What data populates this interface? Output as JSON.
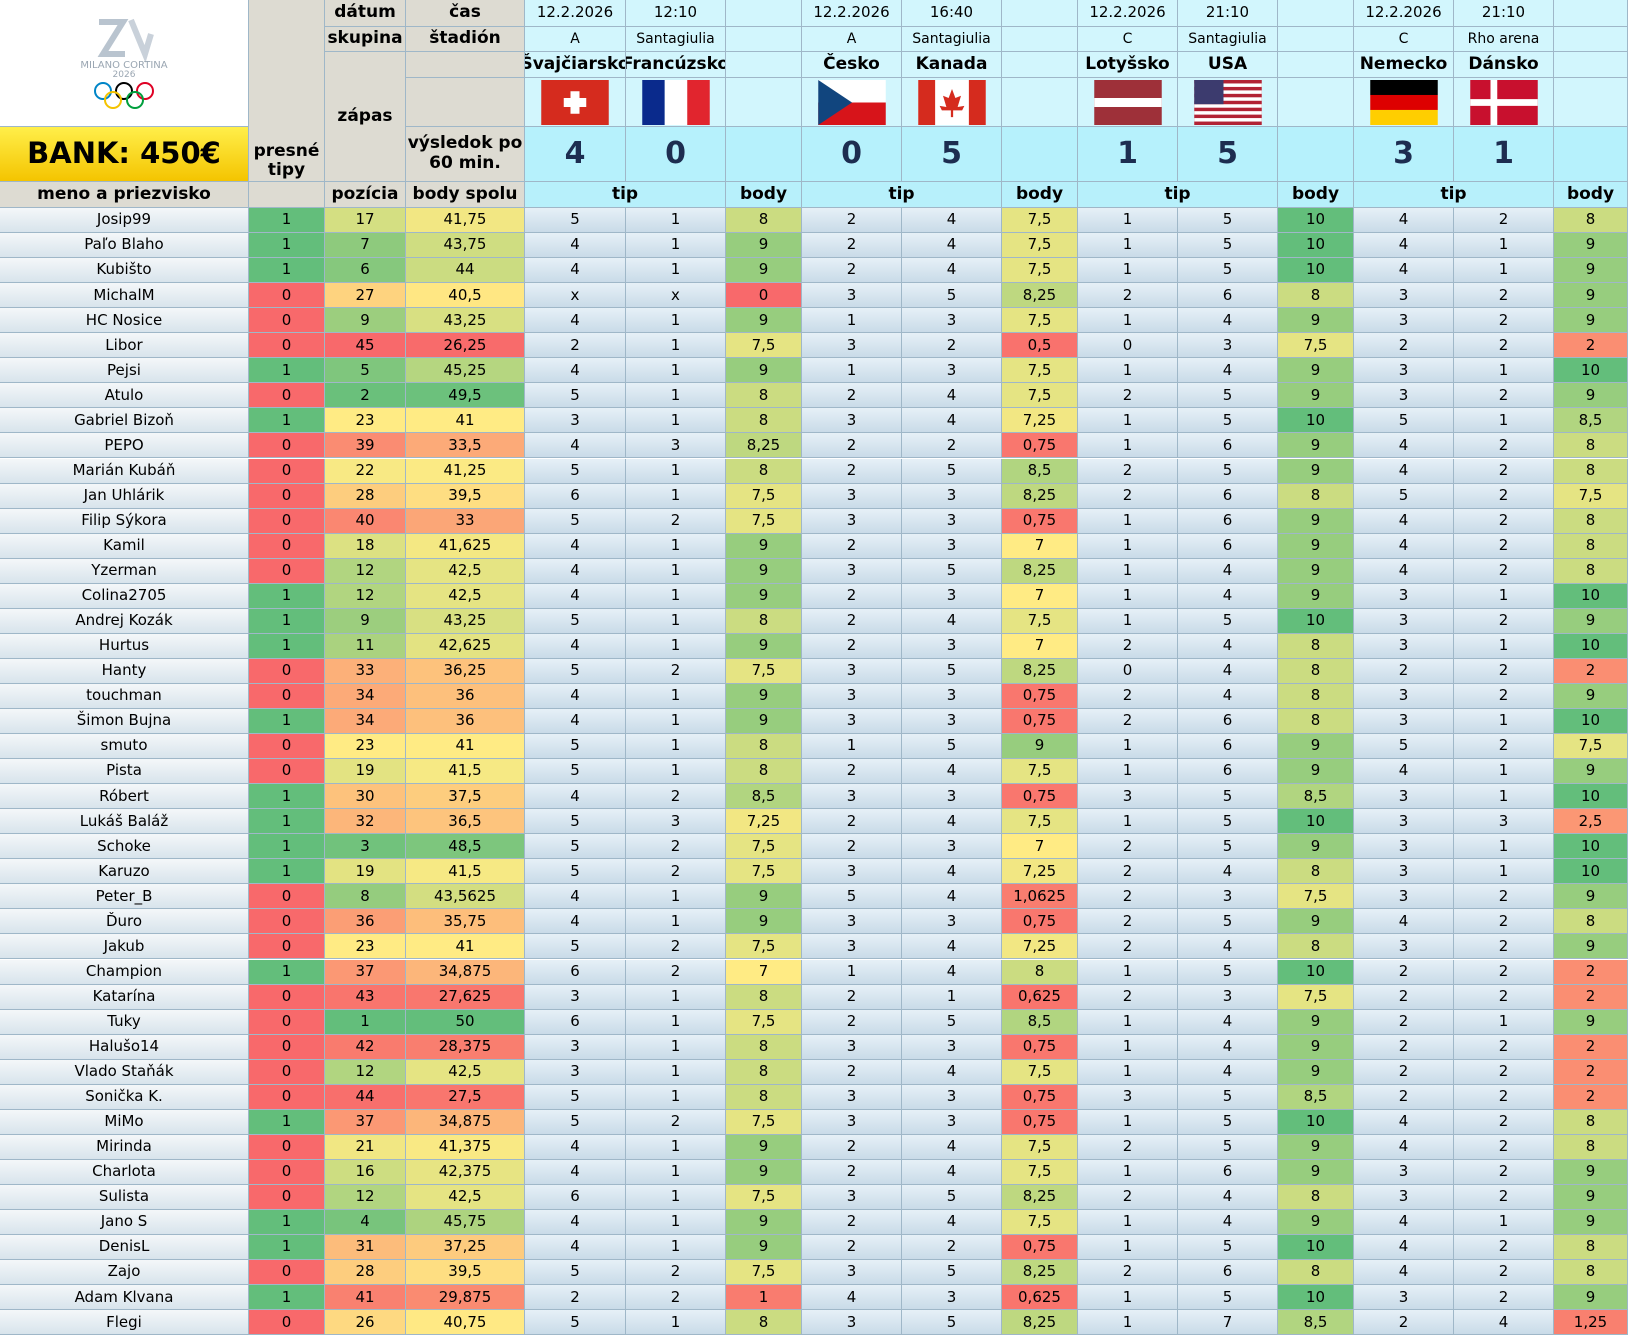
{
  "logo": {
    "line1": "MILANO CORTINA",
    "line2": "2026"
  },
  "bank_label": "BANK: 450€",
  "headers": {
    "datum": "dátum",
    "cas": "čas",
    "skupina": "skupina",
    "stadion": "štadión",
    "zapas": "zápas",
    "vysledok": "výsledok po 60 min.",
    "presne_tipy": "presné tipy",
    "meno": "meno a priezvisko",
    "pozicia": "pozícia",
    "body_spolu": "body spolu",
    "tip": "tip",
    "body": "body"
  },
  "matches": [
    {
      "date": "12.2.2026",
      "time": "12:10",
      "group": "A",
      "stadium": "Santagiulia",
      "home": "Švajčiarsko",
      "away": "Francúzsko",
      "home_flag": "switzerland-flag",
      "away_flag": "france-flag",
      "home_score": "4",
      "away_score": "0"
    },
    {
      "date": "12.2.2026",
      "time": "16:40",
      "group": "A",
      "stadium": "Santagiulia",
      "home": "Česko",
      "away": "Kanada",
      "home_flag": "czechia-flag",
      "away_flag": "canada-flag",
      "home_score": "0",
      "away_score": "5"
    },
    {
      "date": "12.2.2026",
      "time": "21:10",
      "group": "C",
      "stadium": "Santagiulia",
      "home": "Lotyšsko",
      "away": "USA",
      "home_flag": "latvia-flag",
      "away_flag": "usa-flag",
      "home_score": "1",
      "away_score": "5"
    },
    {
      "date": "12.2.2026",
      "time": "21:10",
      "group": "C",
      "stadium": "Rho arena",
      "home": "Nemecko",
      "away": "Dánsko",
      "home_flag": "germany-flag",
      "away_flag": "denmark-flag",
      "home_score": "3",
      "away_score": "1"
    }
  ],
  "players": [
    [
      "Josip99",
      "1",
      "17",
      "41,75",
      "5",
      "1",
      "8",
      "2",
      "4",
      "7,5",
      "1",
      "5",
      "10",
      "4",
      "2",
      "8"
    ],
    [
      "Paľo Blaho",
      "1",
      "7",
      "43,75",
      "4",
      "1",
      "9",
      "2",
      "4",
      "7,5",
      "1",
      "5",
      "10",
      "4",
      "1",
      "9"
    ],
    [
      "Kubišto",
      "1",
      "6",
      "44",
      "4",
      "1",
      "9",
      "2",
      "4",
      "7,5",
      "1",
      "5",
      "10",
      "4",
      "1",
      "9"
    ],
    [
      "MichalM",
      "0",
      "27",
      "40,5",
      "x",
      "x",
      "0",
      "3",
      "5",
      "8,25",
      "2",
      "6",
      "8",
      "3",
      "2",
      "9"
    ],
    [
      "HC Nosice",
      "0",
      "9",
      "43,25",
      "4",
      "1",
      "9",
      "1",
      "3",
      "7,5",
      "1",
      "4",
      "9",
      "3",
      "2",
      "9"
    ],
    [
      "Libor",
      "0",
      "45",
      "26,25",
      "2",
      "1",
      "7,5",
      "3",
      "2",
      "0,5",
      "0",
      "3",
      "7,5",
      "2",
      "2",
      "2"
    ],
    [
      "Pejsi",
      "1",
      "5",
      "45,25",
      "4",
      "1",
      "9",
      "1",
      "3",
      "7,5",
      "1",
      "4",
      "9",
      "3",
      "1",
      "10"
    ],
    [
      "Atulo",
      "0",
      "2",
      "49,5",
      "5",
      "1",
      "8",
      "2",
      "4",
      "7,5",
      "2",
      "5",
      "9",
      "3",
      "2",
      "9"
    ],
    [
      "Gabriel Bizoň",
      "1",
      "23",
      "41",
      "3",
      "1",
      "8",
      "3",
      "4",
      "7,25",
      "1",
      "5",
      "10",
      "5",
      "1",
      "8,5"
    ],
    [
      "PEPO",
      "0",
      "39",
      "33,5",
      "4",
      "3",
      "8,25",
      "2",
      "2",
      "0,75",
      "1",
      "6",
      "9",
      "4",
      "2",
      "8"
    ],
    [
      "Marián Kubáň",
      "0",
      "22",
      "41,25",
      "5",
      "1",
      "8",
      "2",
      "5",
      "8,5",
      "2",
      "5",
      "9",
      "4",
      "2",
      "8"
    ],
    [
      "Jan Uhlárik",
      "0",
      "28",
      "39,5",
      "6",
      "1",
      "7,5",
      "3",
      "3",
      "8,25",
      "2",
      "6",
      "8",
      "5",
      "2",
      "7,5"
    ],
    [
      "Filip Sýkora",
      "0",
      "40",
      "33",
      "5",
      "2",
      "7,5",
      "3",
      "3",
      "0,75",
      "1",
      "6",
      "9",
      "4",
      "2",
      "8"
    ],
    [
      "Kamil",
      "0",
      "18",
      "41,625",
      "4",
      "1",
      "9",
      "2",
      "3",
      "7",
      "1",
      "6",
      "9",
      "4",
      "2",
      "8"
    ],
    [
      "Yzerman",
      "0",
      "12",
      "42,5",
      "4",
      "1",
      "9",
      "3",
      "5",
      "8,25",
      "1",
      "4",
      "9",
      "4",
      "2",
      "8"
    ],
    [
      "Colina2705",
      "1",
      "12",
      "42,5",
      "4",
      "1",
      "9",
      "2",
      "3",
      "7",
      "1",
      "4",
      "9",
      "3",
      "1",
      "10"
    ],
    [
      "Andrej Kozák",
      "1",
      "9",
      "43,25",
      "5",
      "1",
      "8",
      "2",
      "4",
      "7,5",
      "1",
      "5",
      "10",
      "3",
      "2",
      "9"
    ],
    [
      "Hurtus",
      "1",
      "11",
      "42,625",
      "4",
      "1",
      "9",
      "2",
      "3",
      "7",
      "2",
      "4",
      "8",
      "3",
      "1",
      "10"
    ],
    [
      "Hanty",
      "0",
      "33",
      "36,25",
      "5",
      "2",
      "7,5",
      "3",
      "5",
      "8,25",
      "0",
      "4",
      "8",
      "2",
      "2",
      "2"
    ],
    [
      "touchman",
      "0",
      "34",
      "36",
      "4",
      "1",
      "9",
      "3",
      "3",
      "0,75",
      "2",
      "4",
      "8",
      "3",
      "2",
      "9"
    ],
    [
      "Šimon Bujna",
      "1",
      "34",
      "36",
      "4",
      "1",
      "9",
      "3",
      "3",
      "0,75",
      "2",
      "6",
      "8",
      "3",
      "1",
      "10"
    ],
    [
      "smuto",
      "0",
      "23",
      "41",
      "5",
      "1",
      "8",
      "1",
      "5",
      "9",
      "1",
      "6",
      "9",
      "5",
      "2",
      "7,5"
    ],
    [
      "Pista",
      "0",
      "19",
      "41,5",
      "5",
      "1",
      "8",
      "2",
      "4",
      "7,5",
      "1",
      "6",
      "9",
      "4",
      "1",
      "9"
    ],
    [
      "Róbert",
      "1",
      "30",
      "37,5",
      "4",
      "2",
      "8,5",
      "3",
      "3",
      "0,75",
      "3",
      "5",
      "8,5",
      "3",
      "1",
      "10"
    ],
    [
      "Lukáš Baláž",
      "1",
      "32",
      "36,5",
      "5",
      "3",
      "7,25",
      "2",
      "4",
      "7,5",
      "1",
      "5",
      "10",
      "3",
      "3",
      "2,5"
    ],
    [
      "Schoke",
      "1",
      "3",
      "48,5",
      "5",
      "2",
      "7,5",
      "2",
      "3",
      "7",
      "2",
      "5",
      "9",
      "3",
      "1",
      "10"
    ],
    [
      "Karuzo",
      "1",
      "19",
      "41,5",
      "5",
      "2",
      "7,5",
      "3",
      "4",
      "7,25",
      "2",
      "4",
      "8",
      "3",
      "1",
      "10"
    ],
    [
      "Peter_B",
      "0",
      "8",
      "43,5625",
      "4",
      "1",
      "9",
      "5",
      "4",
      "1,0625",
      "2",
      "3",
      "7,5",
      "3",
      "2",
      "9"
    ],
    [
      "Ďuro",
      "0",
      "36",
      "35,75",
      "4",
      "1",
      "9",
      "3",
      "3",
      "0,75",
      "2",
      "5",
      "9",
      "4",
      "2",
      "8"
    ],
    [
      "Jakub",
      "0",
      "23",
      "41",
      "5",
      "2",
      "7,5",
      "3",
      "4",
      "7,25",
      "2",
      "4",
      "8",
      "3",
      "2",
      "9"
    ],
    [
      "Champion",
      "1",
      "37",
      "34,875",
      "6",
      "2",
      "7",
      "1",
      "4",
      "8",
      "1",
      "5",
      "10",
      "2",
      "2",
      "2"
    ],
    [
      "Katarína",
      "0",
      "43",
      "27,625",
      "3",
      "1",
      "8",
      "2",
      "1",
      "0,625",
      "2",
      "3",
      "7,5",
      "2",
      "2",
      "2"
    ],
    [
      "Tuky",
      "0",
      "1",
      "50",
      "6",
      "1",
      "7,5",
      "2",
      "5",
      "8,5",
      "1",
      "4",
      "9",
      "2",
      "1",
      "9"
    ],
    [
      "Halušo14",
      "0",
      "42",
      "28,375",
      "3",
      "1",
      "8",
      "3",
      "3",
      "0,75",
      "1",
      "4",
      "9",
      "2",
      "2",
      "2"
    ],
    [
      "Vlado Staňák",
      "0",
      "12",
      "42,5",
      "3",
      "1",
      "8",
      "2",
      "4",
      "7,5",
      "1",
      "4",
      "9",
      "2",
      "2",
      "2"
    ],
    [
      "Sonička K.",
      "0",
      "44",
      "27,5",
      "5",
      "1",
      "8",
      "3",
      "3",
      "0,75",
      "3",
      "5",
      "8,5",
      "2",
      "2",
      "2"
    ],
    [
      "MiMo",
      "1",
      "37",
      "34,875",
      "5",
      "2",
      "7,5",
      "3",
      "3",
      "0,75",
      "1",
      "5",
      "10",
      "4",
      "2",
      "8"
    ],
    [
      "Mirinda",
      "0",
      "21",
      "41,375",
      "4",
      "1",
      "9",
      "2",
      "4",
      "7,5",
      "2",
      "5",
      "9",
      "4",
      "2",
      "8"
    ],
    [
      "Charlota",
      "0",
      "16",
      "42,375",
      "4",
      "1",
      "9",
      "2",
      "4",
      "7,5",
      "1",
      "6",
      "9",
      "3",
      "2",
      "9"
    ],
    [
      "Sulista",
      "0",
      "12",
      "42,5",
      "6",
      "1",
      "7,5",
      "3",
      "5",
      "8,25",
      "2",
      "4",
      "8",
      "3",
      "2",
      "9"
    ],
    [
      "Jano S",
      "1",
      "4",
      "45,75",
      "4",
      "1",
      "9",
      "2",
      "4",
      "7,5",
      "1",
      "4",
      "9",
      "4",
      "1",
      "9"
    ],
    [
      "DenisL",
      "1",
      "31",
      "37,25",
      "4",
      "1",
      "9",
      "2",
      "2",
      "0,75",
      "1",
      "5",
      "10",
      "4",
      "2",
      "8"
    ],
    [
      "Zajo",
      "0",
      "28",
      "39,5",
      "5",
      "2",
      "7,5",
      "3",
      "5",
      "8,25",
      "2",
      "6",
      "8",
      "4",
      "2",
      "8"
    ],
    [
      "Adam Klvana",
      "1",
      "41",
      "29,875",
      "2",
      "2",
      "1",
      "4",
      "3",
      "0,625",
      "1",
      "5",
      "10",
      "3",
      "2",
      "9"
    ],
    [
      "Flegi",
      "0",
      "26",
      "40,75",
      "5",
      "1",
      "8",
      "3",
      "5",
      "8,25",
      "1",
      "7",
      "8,5",
      "2",
      "4",
      "1,25"
    ]
  ]
}
